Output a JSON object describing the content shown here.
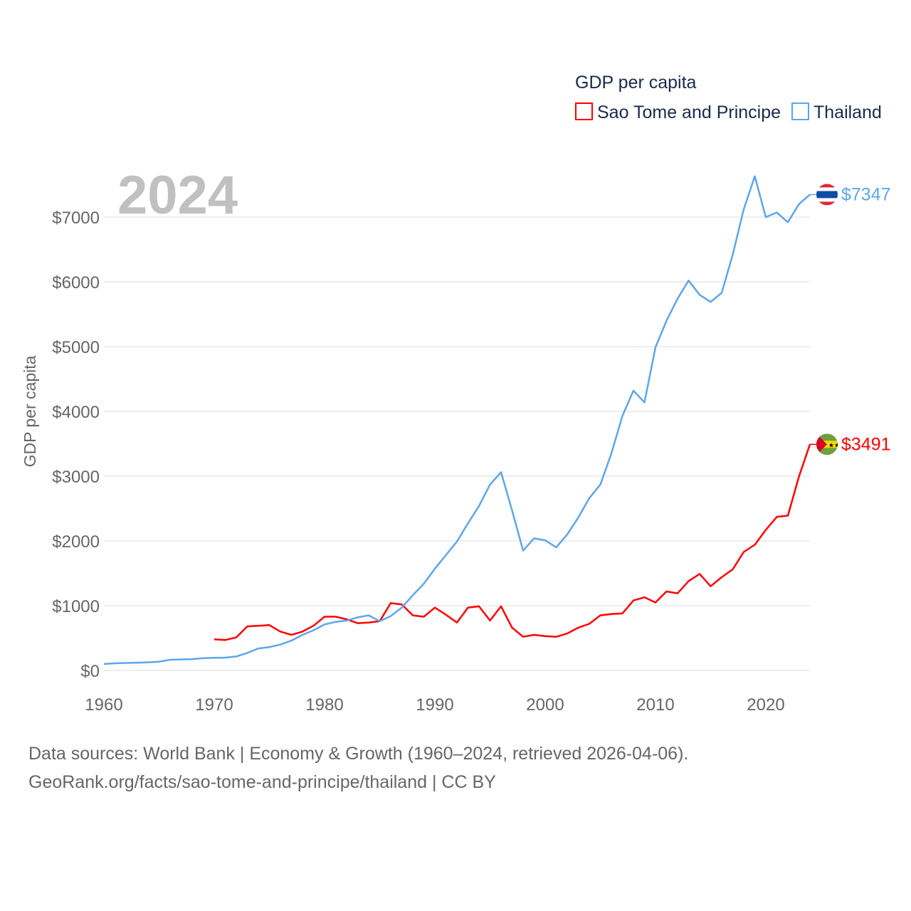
{
  "chart_data": {
    "type": "line",
    "title": "GDP per capita",
    "ylabel": "GDP per capita",
    "xlabel": "",
    "year_label": "2024",
    "xlim": [
      1960,
      2024
    ],
    "ylim": [
      0,
      7800
    ],
    "x_ticks": [
      1960,
      1970,
      1980,
      1990,
      2000,
      2010,
      2020
    ],
    "y_ticks": [
      0,
      1000,
      2000,
      3000,
      4000,
      5000,
      6000,
      7000
    ],
    "y_tick_labels": [
      "$0",
      "$1000",
      "$2000",
      "$3000",
      "$4000",
      "$5000",
      "$6000",
      "$7000"
    ],
    "grid": true,
    "legend_placement": "top-right",
    "series": [
      {
        "name": "Sao Tome and Principe",
        "color": "#ff0000",
        "start_year": 1970,
        "end_label": "$3491",
        "flag": "sao-tome-flag",
        "values": [
          480,
          470,
          510,
          680,
          690,
          700,
          600,
          550,
          600,
          690,
          830,
          830,
          790,
          730,
          740,
          760,
          1040,
          1020,
          850,
          830,
          970,
          860,
          740,
          970,
          990,
          770,
          990,
          660,
          520,
          550,
          530,
          520,
          570,
          660,
          720,
          850,
          870,
          880,
          1080,
          1130,
          1050,
          1220,
          1190,
          1380,
          1490,
          1300,
          1440,
          1560,
          1830,
          1940,
          2170,
          2370,
          2390,
          2990,
          3491
        ]
      },
      {
        "name": "Thailand",
        "color": "#5ea6ea",
        "start_year": 1960,
        "end_label": "$7347",
        "flag": "thailand-flag",
        "values": [
          100,
          110,
          115,
          120,
          125,
          135,
          165,
          170,
          175,
          190,
          195,
          198,
          215,
          270,
          340,
          360,
          400,
          460,
          550,
          620,
          710,
          750,
          770,
          820,
          850,
          760,
          840,
          970,
          1160,
          1340,
          1570,
          1780,
          1990,
          2270,
          2540,
          2870,
          3060,
          2470,
          1850,
          2040,
          2010,
          1900,
          2100,
          2360,
          2660,
          2870,
          3350,
          3930,
          4320,
          4140,
          4990,
          5400,
          5740,
          6020,
          5800,
          5690,
          5830,
          6420,
          7120,
          7630,
          7000,
          7070,
          6920,
          7200,
          7347
        ]
      }
    ]
  },
  "footer": {
    "line1": "Data sources: World Bank | Economy & Growth (1960–2024, retrieved 2026-04-06).",
    "line2": "GeoRank.org/facts/sao-tome-and-principe/thailand | CC BY"
  }
}
